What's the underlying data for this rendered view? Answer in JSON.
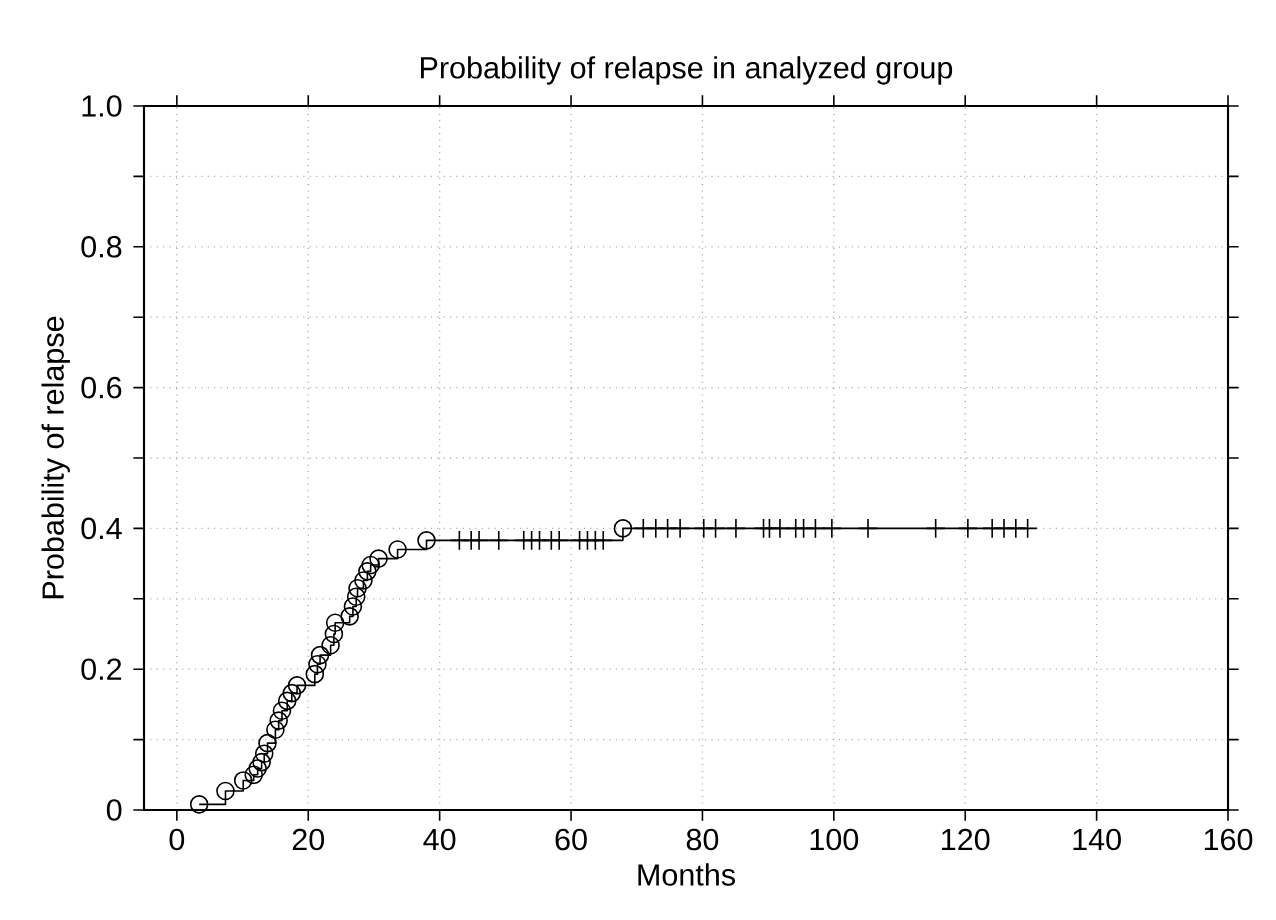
{
  "chart_data": {
    "type": "step",
    "title": "Probability of relapse in analyzed group",
    "xlabel": "Months",
    "ylabel": "Probability of relapse",
    "xlim": [
      -5,
      160
    ],
    "xticks": [
      0,
      20,
      40,
      60,
      80,
      100,
      120,
      140,
      160
    ],
    "ylim": [
      0,
      1
    ],
    "yticks": [
      0,
      {
        "value": 0.1,
        "label": null
      },
      0.2,
      {
        "value": 0.3,
        "label": null
      },
      0.4,
      {
        "value": 0.5,
        "label": null
      },
      0.6,
      {
        "value": 0.7,
        "label": null
      },
      0.8,
      {
        "value": 0.9,
        "label": null
      },
      {
        "value": 1,
        "label": "1.0"
      }
    ],
    "grid": true,
    "series": [
      {
        "color": "#000000",
        "marker": "none",
        "line_style": "solid",
        "x": [
          3.4,
          7.4,
          10.1,
          11.7,
          12.3,
          12.9,
          13.3,
          13.8,
          15.0,
          15.5,
          16.0,
          16.8,
          17.5,
          18.3,
          21.0,
          21.4,
          21.8,
          23.4,
          23.9,
          24.1,
          26.3,
          26.8,
          27.3,
          27.5,
          28.4,
          29.0,
          29.5,
          30.7,
          33.6,
          38.0,
          67.9,
          129.5
        ],
        "values": [
          0.008,
          0.027,
          0.042,
          0.05,
          0.059,
          0.068,
          0.08,
          0.095,
          0.114,
          0.127,
          0.141,
          0.155,
          0.166,
          0.177,
          0.193,
          0.207,
          0.22,
          0.234,
          0.25,
          0.266,
          0.275,
          0.289,
          0.303,
          0.315,
          0.326,
          0.339,
          0.348,
          0.357,
          0.37,
          0.383,
          0.4,
          0.4
        ]
      },
      {
        "type": "scatter",
        "color": "#000000",
        "marker": "circle",
        "x": [
          3.4,
          7.4,
          10.1,
          11.7,
          12.3,
          12.9,
          13.3,
          13.8,
          15.0,
          15.5,
          16.0,
          16.8,
          17.5,
          18.3,
          21.0,
          21.4,
          21.8,
          23.4,
          23.9,
          24.1,
          26.3,
          26.8,
          27.3,
          27.5,
          28.4,
          29.0,
          29.5,
          30.7,
          33.6,
          38.0,
          67.9
        ],
        "values": [
          0.008,
          0.027,
          0.042,
          0.05,
          0.059,
          0.068,
          0.08,
          0.095,
          0.114,
          0.127,
          0.141,
          0.155,
          0.166,
          0.177,
          0.193,
          0.207,
          0.22,
          0.234,
          0.25,
          0.266,
          0.275,
          0.289,
          0.303,
          0.315,
          0.326,
          0.339,
          0.348,
          0.357,
          0.37,
          0.383,
          0.4
        ]
      },
      {
        "type": "scatter",
        "color": "#000000",
        "marker": "cross",
        "x": [
          43.0,
          44.8,
          46.0,
          49.0,
          52.8,
          54.0,
          55.2,
          57.0,
          58.2,
          61.3,
          62.5,
          63.7,
          64.9,
          71.0,
          72.9,
          74.7,
          76.6,
          80.2,
          82.0,
          85.1,
          89.3,
          90.2,
          91.8,
          94.2,
          95.4,
          97.2,
          99.7,
          105.2,
          115.5,
          120.4,
          124.1,
          125.9,
          127.7,
          129.5
        ],
        "values": [
          0.383,
          0.383,
          0.383,
          0.383,
          0.383,
          0.383,
          0.383,
          0.383,
          0.383,
          0.383,
          0.383,
          0.383,
          0.383,
          0.4,
          0.4,
          0.4,
          0.4,
          0.4,
          0.4,
          0.4,
          0.4,
          0.4,
          0.4,
          0.4,
          0.4,
          0.4,
          0.4,
          0.4,
          0.4,
          0.4,
          0.4,
          0.4,
          0.4,
          0.4
        ]
      }
    ]
  }
}
